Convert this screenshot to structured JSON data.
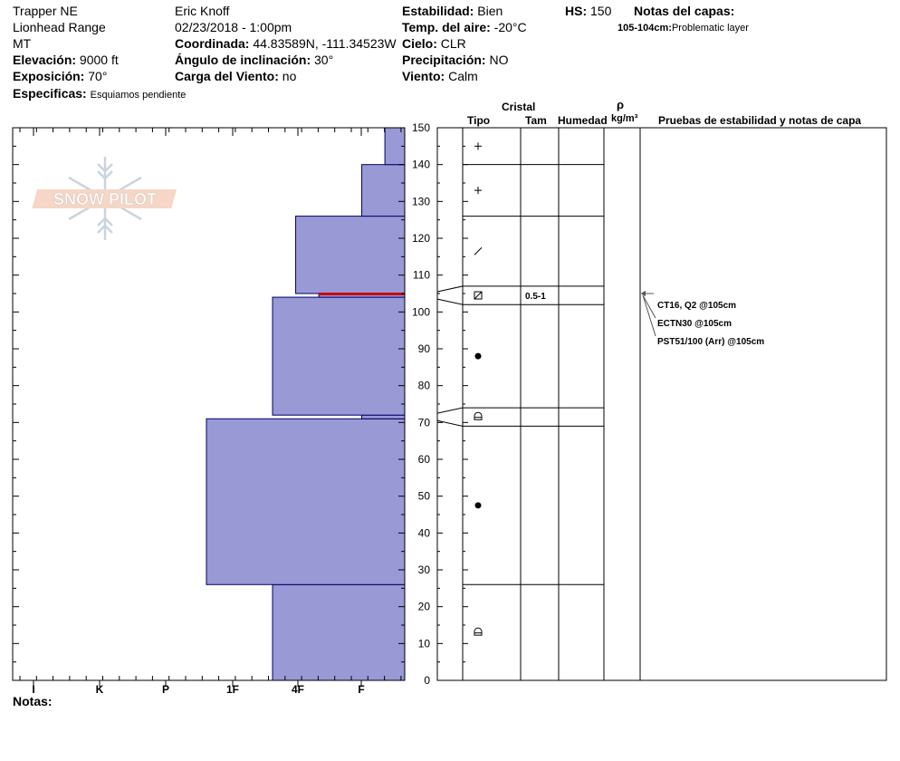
{
  "header": {
    "location": "Trapper NE",
    "range": "Lionhead Range",
    "state": "MT",
    "elevation_label": "Elevación:",
    "elevation": "9000 ft",
    "aspect_label": "Exposición:",
    "aspect": "70°",
    "specifics_label": "Especificas:",
    "specifics": "Esquiamos pendiente",
    "observer": "Eric Knoff",
    "datetime": "02/23/2018 - 1:00pm",
    "coord_label": "Coordinada:",
    "coord": "44.83589N, -111.34523W",
    "slope_label": "Ángulo de inclinación:",
    "slope": "30°",
    "wind_load_label": "Carga del Viento:",
    "wind_load": "no",
    "stability_label": "Estabilidad:",
    "stability": "Bien",
    "air_temp_label": "Temp. del aire:",
    "air_temp": "-20°C",
    "sky_label": "Cielo:",
    "sky": "CLR",
    "precip_label": "Precipitación:",
    "precip": "NO",
    "wind_label": "Viento:",
    "wind": "Calm",
    "hs_label": "HS:",
    "hs": "150",
    "layer_notes_label": "Notas del capas:",
    "layer_note_range": "105-104cm:",
    "layer_note_text": "Problematic layer"
  },
  "logo_text": "SNOW PILOT",
  "columns": {
    "crystal": "Cristal",
    "type": "Tipo",
    "size": "Tam",
    "moisture": "Humedad",
    "rho": "ρ",
    "density_unit": "kg/m³",
    "tests": "Pruebas de estabilidad y notas de capa"
  },
  "notes_label": "Notas:",
  "colors": {
    "layer_fill": "#9999d6",
    "layer_stroke": "#000066",
    "weak_layer": "#cc0000"
  },
  "chart_data": {
    "type": "snow-profile",
    "y_ticks": [
      0,
      10,
      20,
      30,
      40,
      50,
      60,
      70,
      80,
      90,
      100,
      110,
      120,
      130,
      140,
      150
    ],
    "ylim": [
      0,
      150
    ],
    "hardness_scale": [
      "I",
      "K",
      "P",
      "1F",
      "4F",
      "F"
    ],
    "hardness_layers": [
      {
        "bottom": 0,
        "top": 26,
        "hardness": 2.0
      },
      {
        "bottom": 26,
        "top": 71,
        "hardness": 3.0
      },
      {
        "bottom": 71,
        "top": 72,
        "hardness": 0.65
      },
      {
        "bottom": 72,
        "top": 104,
        "hardness": 2.0
      },
      {
        "bottom": 104,
        "top": 105,
        "hardness": 1.3
      },
      {
        "bottom": 105,
        "top": 126,
        "hardness": 1.65
      },
      {
        "bottom": 126,
        "top": 140,
        "hardness": 0.65
      },
      {
        "bottom": 140,
        "top": 150,
        "hardness": 0.3
      }
    ],
    "weak_layer": {
      "bottom": 104,
      "top": 105,
      "hardness": 1.3
    },
    "grid_layers": [
      {
        "bottom": 0,
        "top": 26,
        "symbol": "depth-hoar-icon",
        "size": ""
      },
      {
        "bottom": 26,
        "top": 69,
        "symbol": "rounded-grain-icon",
        "size": ""
      },
      {
        "bottom": 69,
        "top": 74,
        "symbol": "depth-hoar-icon",
        "size": ""
      },
      {
        "bottom": 74,
        "top": 102,
        "symbol": "rounded-grain-icon",
        "size": ""
      },
      {
        "bottom": 102,
        "top": 107,
        "symbol": "faceted-rounded-icon",
        "size": "0.5-1"
      },
      {
        "bottom": 107,
        "top": 126,
        "symbol": "decomposed-particle-icon",
        "size": ""
      },
      {
        "bottom": 126,
        "top": 140,
        "symbol": "new-snow-icon",
        "size": ""
      },
      {
        "bottom": 140,
        "top": 150,
        "symbol": "new-snow-icon",
        "size": ""
      }
    ],
    "tests": [
      {
        "label": "CT16, Q2 @105cm",
        "depth": 105
      },
      {
        "label": "ECTN30 @105cm",
        "depth": 105
      },
      {
        "label": "PST51/100 (Arr) @105cm",
        "depth": 105
      }
    ]
  }
}
